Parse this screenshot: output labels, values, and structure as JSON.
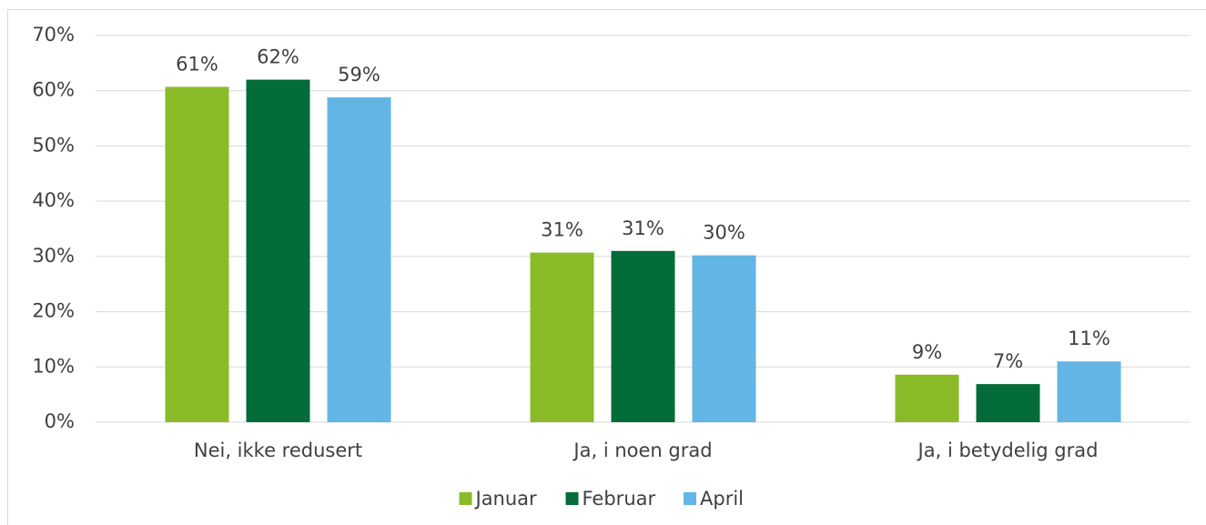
{
  "chart_data": {
    "type": "bar",
    "categories": [
      "Nei, ikke redusert",
      "Ja, i noen grad",
      "Ja, i betydelig grad"
    ],
    "series": [
      {
        "name": "Januar",
        "color": "#8aba27",
        "values": [
          60.7,
          30.7,
          8.6
        ],
        "value_labels": [
          "61%",
          "31%",
          "9%"
        ]
      },
      {
        "name": "Februar",
        "color": "#046c38",
        "values": [
          62.0,
          31.0,
          6.9
        ],
        "value_labels": [
          "62%",
          "31%",
          "7%"
        ]
      },
      {
        "name": "April",
        "color": "#63b5e5",
        "values": [
          58.8,
          30.2,
          11.0
        ],
        "value_labels": [
          "59%",
          "30%",
          "11%"
        ]
      }
    ],
    "ylim": [
      0,
      70
    ],
    "yticks": [
      {
        "value": 0,
        "label": "0%"
      },
      {
        "value": 10,
        "label": "10%"
      },
      {
        "value": 20,
        "label": "20%"
      },
      {
        "value": 30,
        "label": "30%"
      },
      {
        "value": 40,
        "label": "40%"
      },
      {
        "value": 50,
        "label": "50%"
      },
      {
        "value": 60,
        "label": "60%"
      },
      {
        "value": 70,
        "label": "70%"
      }
    ],
    "grid": true,
    "legend": "bottom"
  }
}
